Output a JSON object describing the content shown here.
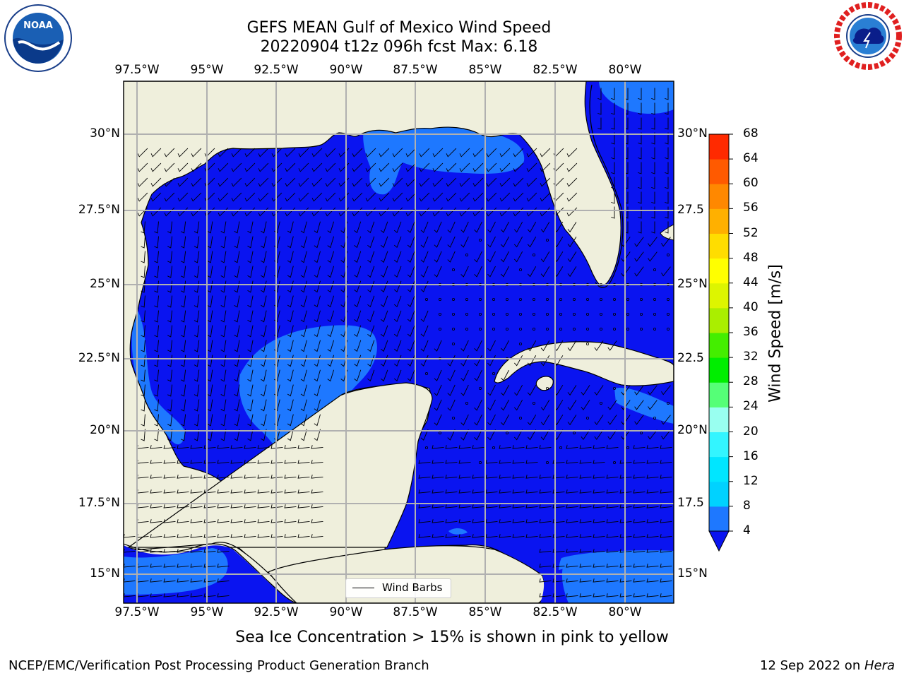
{
  "title_line1": "GEFS MEAN Gulf of Mexico Wind Speed",
  "title_line2": "20220904 t12z 096h fcst   Max: 6.18",
  "caption": "Sea Ice Concentration > 15% is shown in pink to yellow",
  "credit_left": "NCEP/EMC/Verification Post Processing Product Generation Branch",
  "credit_right_date": "12 Sep 2022 on ",
  "credit_right_machine": "Hera",
  "logo_left": "noara-logo",
  "logo_right": "nws-logo",
  "legend": {
    "wind_barbs": "Wind Barbs"
  },
  "axes": {
    "lon_labels": [
      "97.5°W",
      "95°W",
      "92.5°W",
      "90°W",
      "87.5°W",
      "85°W",
      "82.5°W",
      "80°W"
    ],
    "lat_labels_left": [
      "30°N",
      "27.5°N",
      "25°N",
      "22.5°N",
      "20°N",
      "17.5°N",
      "15°N"
    ],
    "lat_labels_right": [
      "30°N",
      "27.5",
      "25°N",
      "22.5",
      "20°N",
      "17.5",
      "15°N"
    ]
  },
  "colorbar": {
    "label": "Wind Speed [m/s]",
    "ticks": [
      "68",
      "64",
      "60",
      "56",
      "52",
      "48",
      "44",
      "40",
      "36",
      "32",
      "28",
      "24",
      "20",
      "16",
      "12",
      "8",
      "4"
    ],
    "colors": [
      "#1e78ff",
      "#00d2ff",
      "#00e6ff",
      "#33f5ff",
      "#99fff0",
      "#55ff77",
      "#00ee00",
      "#44ee00",
      "#aaee00",
      "#ddf500",
      "#ffff00",
      "#ffdd00",
      "#ffb000",
      "#ff8800",
      "#ff5a00",
      "#ff2a00"
    ],
    "under_color": "#0a14f0"
  },
  "colors": {
    "land": "#efefdc",
    "ocean_4": "#0a14f0",
    "ocean_8": "#1e78ff",
    "grid": "#b0b0b0"
  }
}
